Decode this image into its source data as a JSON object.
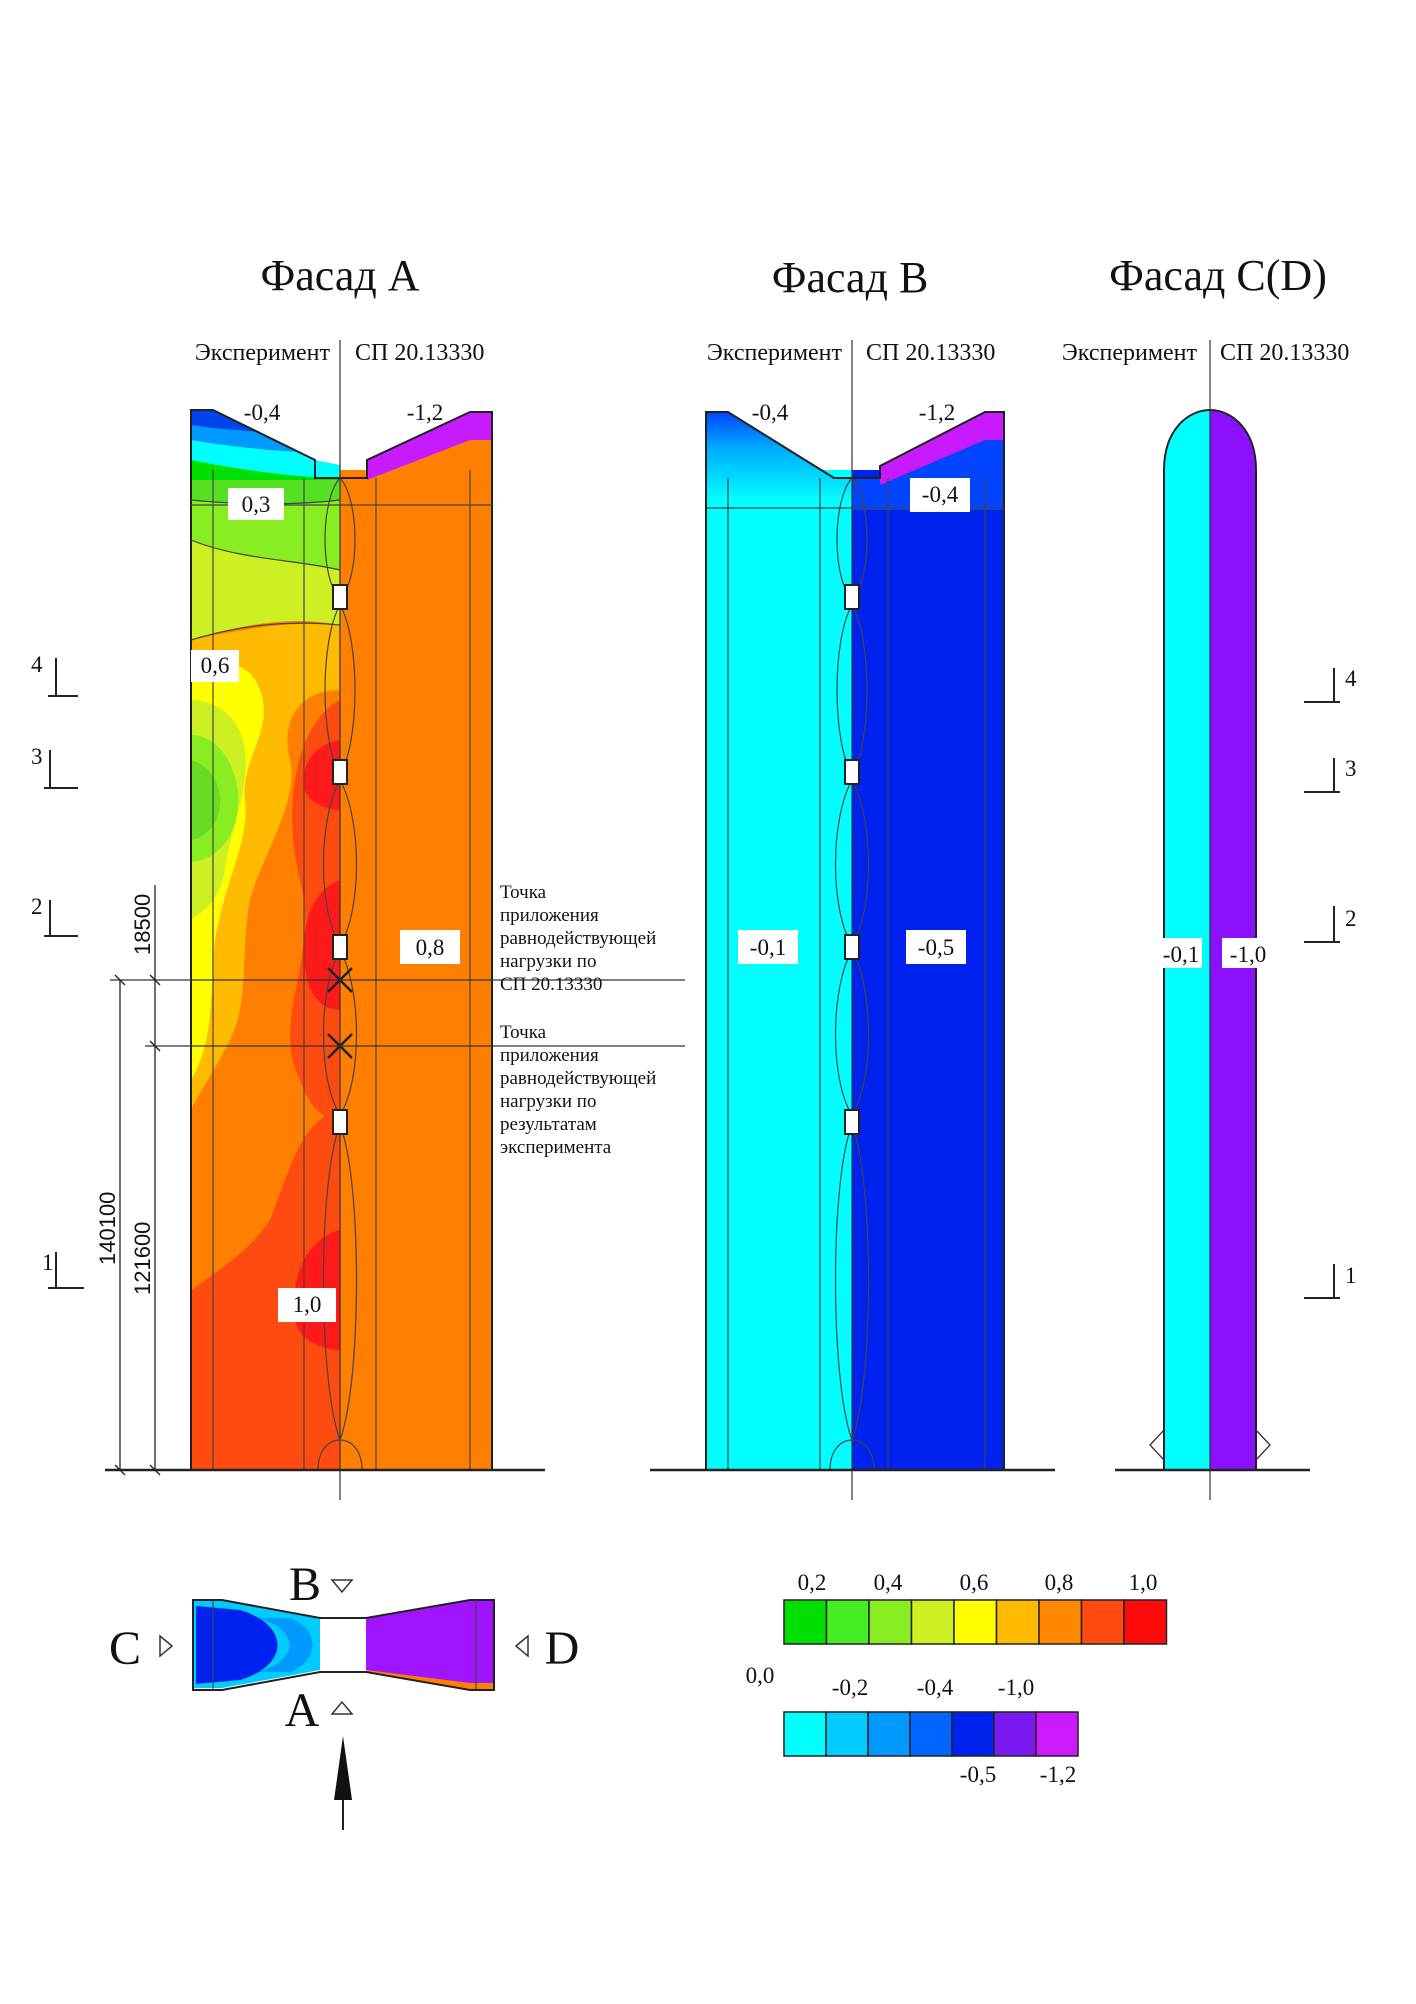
{
  "titles": {
    "facade_a": "Фасад A",
    "facade_b": "Фасад B",
    "facade_cd": "Фасад C(D)"
  },
  "headers": {
    "experiment": "Эксперимент",
    "standard": "СП 20.13330"
  },
  "facade_a": {
    "top_left": "-0,4",
    "top_right": "-1,2",
    "labels": [
      "0,3",
      "0,6",
      "0,8",
      "1,0"
    ],
    "note_standard": [
      "Точка",
      "приложения",
      "равнодействующей",
      "нагрузки по",
      "СП 20.13330"
    ],
    "note_experiment": [
      "Точка",
      "приложения",
      "равнодействующей",
      "нагрузки по",
      "результатам",
      "эксперимента"
    ],
    "dims": [
      "18500",
      "140100",
      "121600"
    ]
  },
  "facade_b": {
    "top_left": "-0,4",
    "top_right": "-1,2",
    "upper_right": "-0,4",
    "left": "-0,1",
    "right": "-0,5"
  },
  "facade_cd": {
    "left": "-0,1",
    "right": "-1,0"
  },
  "section_marks": [
    "1",
    "2",
    "3",
    "4"
  ],
  "plan": {
    "a": "A",
    "b": "B",
    "c": "C",
    "d": "D"
  },
  "legend": {
    "positive_labels": [
      "0,2",
      "0,4",
      "0,6",
      "0,8",
      "1,0"
    ],
    "positive_colors": [
      "#00e000",
      "#44ee22",
      "#88ee22",
      "#ccf022",
      "#ffff00",
      "#ffbb00",
      "#ff8800",
      "#ff4a10",
      "#ff0a0a"
    ],
    "zero_label": "0,0",
    "negative_labels_top": [
      "-0,2",
      "-0,4",
      "-1,0"
    ],
    "negative_labels_bottom": [
      "-0,5",
      "-1,2"
    ],
    "negative_colors": [
      "#00ffff",
      "#00ccff",
      "#0099ff",
      "#0066ff",
      "#0022ee",
      "#7a1af0",
      "#cc1aff"
    ]
  },
  "colors": {
    "orange": "#ff8000",
    "red_orange": "#ff4a10",
    "red": "#ff1a1a",
    "cyan": "#00ffff",
    "blue": "#0022ee",
    "purple": "#8a10ff",
    "magenta": "#c81aff"
  }
}
